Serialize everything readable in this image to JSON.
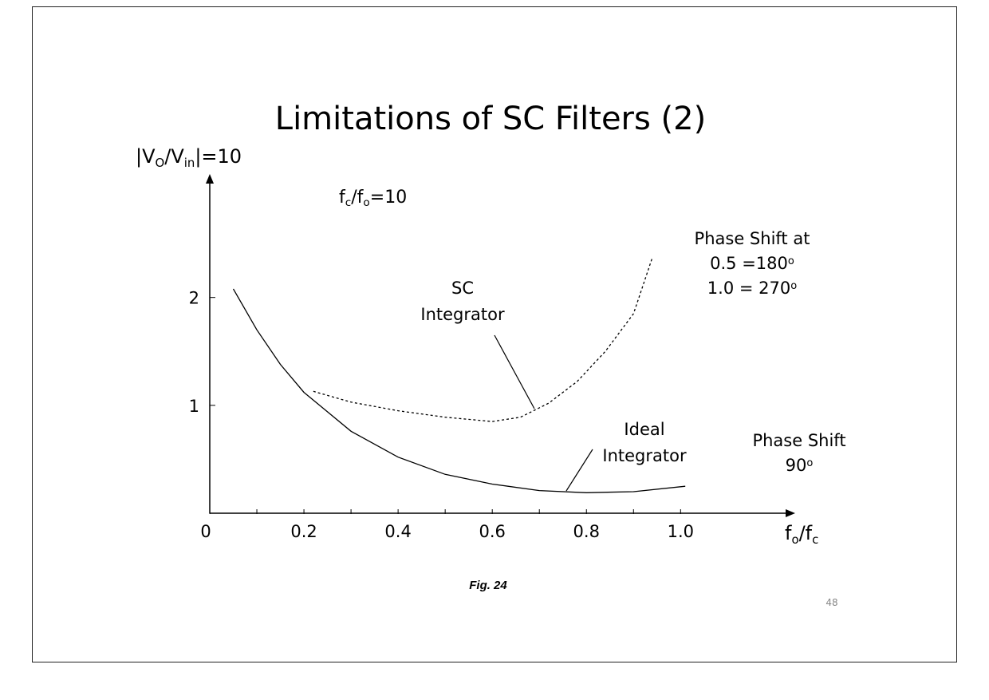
{
  "slide": {
    "title": "Limitations of SC Filters (2)",
    "caption": "Fig. 24",
    "page_number": "48"
  },
  "chart_data": {
    "type": "line",
    "y_label": [
      "|V",
      "O",
      "/V",
      "in",
      "|=10"
    ],
    "x_label": [
      "f",
      "o",
      "/f",
      "c"
    ],
    "ratio_note": [
      "f",
      "c",
      "/f",
      "o",
      "=10"
    ],
    "xlim": [
      0,
      1.24
    ],
    "ylim": [
      0,
      3.1
    ],
    "xticks": [
      0,
      0.2,
      0.4,
      0.6,
      0.8,
      {
        "value": 1,
        "label": "1.0"
      }
    ],
    "xminor_ticks": [
      0.1,
      0.3,
      0.5,
      0.7,
      0.9
    ],
    "yticks": [
      1,
      2
    ],
    "series": [
      {
        "label_lines": [
          "Ideal",
          "Integrator"
        ],
        "color": "#000000",
        "dashed": false,
        "x": [
          0.05,
          0.1,
          0.15,
          0.2,
          0.3,
          0.4,
          0.5,
          0.6,
          0.7,
          0.8,
          0.9,
          1.01
        ],
        "values": [
          2.08,
          1.7,
          1.38,
          1.12,
          0.76,
          0.52,
          0.36,
          0.27,
          0.21,
          0.19,
          0.2,
          0.25
        ]
      },
      {
        "label_lines": [
          "SC",
          "Integrator"
        ],
        "color": "#000000",
        "dashed": true,
        "x": [
          0.22,
          0.3,
          0.4,
          0.5,
          0.6,
          0.66,
          0.72,
          0.78,
          0.84,
          0.9,
          0.94
        ],
        "values": [
          1.13,
          1.03,
          0.95,
          0.89,
          0.85,
          0.89,
          1.02,
          1.22,
          1.5,
          1.85,
          2.37
        ]
      }
    ],
    "phase_notes": [
      [
        [
          "Phase Shift at"
        ],
        [
          "0.5 =180",
          "o"
        ],
        [
          "1.0 = 270",
          "o"
        ]
      ],
      [
        [
          "Phase Shift"
        ],
        [
          "90",
          "o"
        ]
      ]
    ]
  }
}
